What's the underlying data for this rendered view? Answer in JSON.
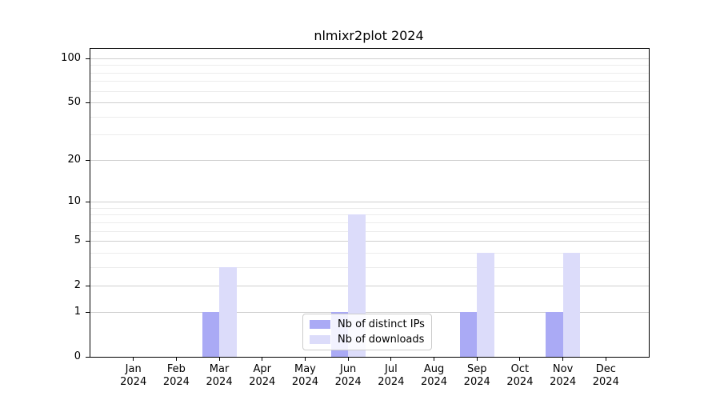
{
  "title": "nlmixr2plot 2024",
  "chart_data": {
    "type": "bar",
    "title": "nlmixr2plot 2024",
    "categories": [
      "Jan 2024",
      "Feb 2024",
      "Mar 2024",
      "Apr 2024",
      "May 2024",
      "Jun 2024",
      "Jul 2024",
      "Aug 2024",
      "Sep 2024",
      "Oct 2024",
      "Nov 2024",
      "Dec 2024"
    ],
    "series": [
      {
        "name": "Nb of distinct IPs",
        "color": "#aaaaf5",
        "values": [
          0,
          0,
          1,
          0,
          0,
          1,
          0,
          0,
          1,
          0,
          1,
          0
        ]
      },
      {
        "name": "Nb of downloads",
        "color": "#dcdcfa",
        "values": [
          0,
          0,
          3,
          0,
          0,
          8,
          0,
          0,
          4,
          0,
          4,
          0
        ]
      }
    ],
    "xlabel": "",
    "ylabel": "",
    "yscale": "log1p",
    "ylim": [
      0,
      116
    ],
    "y_major_ticks": [
      0,
      1,
      2,
      5,
      10,
      20,
      50,
      100
    ],
    "y_minor_ticks": [
      3,
      4,
      6,
      7,
      8,
      9,
      30,
      40,
      60,
      70,
      80,
      90
    ],
    "grid": true,
    "legend_position": "lower center"
  },
  "colors": {
    "distinct_ips": "#aaaaf5",
    "downloads": "#dcdcfa",
    "grid_major": "#cfcfcf",
    "grid_minor": "#ebebeb",
    "axis": "#000000",
    "background": "#ffffff"
  }
}
